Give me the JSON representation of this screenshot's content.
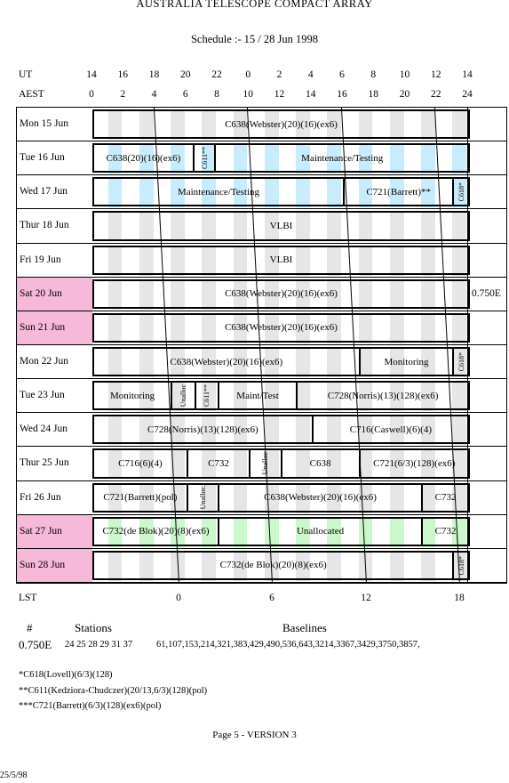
{
  "header": {
    "title": "AUSTRALIA TELESCOPE COMPACT ARRAY",
    "subtitle": "Schedule :- 15 / 28 Jun 1998"
  },
  "axes": {
    "ut_label": "UT",
    "aest_label": "AEST",
    "lst_label": "LST",
    "ut_ticks": [
      "14",
      "16",
      "18",
      "20",
      "22",
      "0",
      "2",
      "4",
      "6",
      "8",
      "10",
      "12",
      "14"
    ],
    "aest_ticks": [
      "0",
      "2",
      "4",
      "6",
      "8",
      "10",
      "12",
      "14",
      "16",
      "18",
      "20",
      "22",
      "24"
    ],
    "lst_ticks": [
      "0",
      "6",
      "12",
      "18"
    ]
  },
  "config_side_label": "0.750E",
  "days": [
    {
      "label": "Mon  15  Jun",
      "weekend": false,
      "blocks": [
        {
          "s": 0,
          "e": 24,
          "t": "C638(Webster)(20)(16)(ex6)"
        }
      ]
    },
    {
      "label": "Tue   16  Jun",
      "weekend": false,
      "blocks": [
        {
          "s": 0,
          "e": 6.4,
          "t": "C638(20)(16)(ex6)"
        },
        {
          "s": 6.4,
          "e": 7.8,
          "t": "C611**",
          "v": true
        },
        {
          "s": 7.8,
          "e": 24,
          "t": "Maintenance/Testing"
        }
      ],
      "stripes": "blue"
    },
    {
      "label": "Wed  17  Jun",
      "weekend": false,
      "blocks": [
        {
          "s": 0,
          "e": 16,
          "t": "Maintenance/Testing"
        },
        {
          "s": 16,
          "e": 23,
          "t": "C721(Barrett)**"
        },
        {
          "s": 23,
          "e": 24,
          "t": "C618*",
          "v": true
        }
      ],
      "stripes": "blue"
    },
    {
      "label": "Thur 18  Jun",
      "weekend": false,
      "blocks": [
        {
          "s": 0,
          "e": 24,
          "t": "VLBI"
        }
      ]
    },
    {
      "label": "Fri   19  Jun",
      "weekend": false,
      "blocks": [
        {
          "s": 0,
          "e": 24,
          "t": "VLBI"
        }
      ]
    },
    {
      "label": "Sat   20  Jun",
      "weekend": true,
      "blocks": [
        {
          "s": 0,
          "e": 24,
          "t": "C638(Webster)(20)(16)(ex6)"
        }
      ]
    },
    {
      "label": "Sun   21  Jun",
      "weekend": true,
      "blocks": [
        {
          "s": 0,
          "e": 24,
          "t": "C638(Webster)(20)(16)(ex6)"
        }
      ]
    },
    {
      "label": "Mon  22  Jun",
      "weekend": false,
      "blocks": [
        {
          "s": 0,
          "e": 17,
          "t": "C638(Webster)(20)(16)(ex6)"
        },
        {
          "s": 17,
          "e": 23,
          "t": "Monitoring"
        },
        {
          "s": 23,
          "e": 24,
          "t": "C618*",
          "v": true
        }
      ]
    },
    {
      "label": "Tue   23  Jun",
      "weekend": false,
      "blocks": [
        {
          "s": 0,
          "e": 5,
          "t": "Monitoring"
        },
        {
          "s": 5,
          "e": 6.5,
          "t": "Unalloc",
          "v": true
        },
        {
          "s": 6.5,
          "e": 8,
          "t": "C611**",
          "v": true
        },
        {
          "s": 8,
          "e": 13,
          "t": "Maint/Test"
        },
        {
          "s": 13,
          "e": 24,
          "t": "C728(Norris)(13)(128)(ex6)"
        }
      ]
    },
    {
      "label": "Wed  24  Jun",
      "weekend": false,
      "blocks": [
        {
          "s": 0,
          "e": 14,
          "t": "C728(Norris)(13)(128)(ex6)"
        },
        {
          "s": 14,
          "e": 24,
          "t": "C716(Caswell)(6)(4)"
        }
      ]
    },
    {
      "label": "Thur 25  Jun",
      "weekend": false,
      "blocks": [
        {
          "s": 0,
          "e": 6,
          "t": "C716(6)(4)"
        },
        {
          "s": 6,
          "e": 10,
          "t": "C732"
        },
        {
          "s": 10,
          "e": 12,
          "t": "Unalloc",
          "v": true,
          "g": true
        },
        {
          "s": 12,
          "e": 17,
          "t": "C638"
        },
        {
          "s": 17,
          "e": 24,
          "t": "C721(6/3)(128)(ex6)"
        }
      ]
    },
    {
      "label": "Fri   26  Jun",
      "weekend": false,
      "blocks": [
        {
          "s": 0,
          "e": 6,
          "t": "C721(Barrett)(pol)"
        },
        {
          "s": 6,
          "e": 8,
          "t": "Unalloc.",
          "v": true,
          "g": true
        },
        {
          "s": 8,
          "e": 21,
          "t": "C638(Webster)(20)(16)(ex6)"
        },
        {
          "s": 21,
          "e": 24,
          "t": "C732"
        }
      ]
    },
    {
      "label": "Sat   27  Jun",
      "weekend": true,
      "blocks": [
        {
          "s": 0,
          "e": 8,
          "t": "C732(de Blok)(20)(8)(ex6)"
        },
        {
          "s": 8,
          "e": 21,
          "t": "Unallocated",
          "g": true
        },
        {
          "s": 21,
          "e": 24,
          "t": "C732"
        }
      ],
      "stripes": "green"
    },
    {
      "label": "Sun   28  Jun",
      "weekend": true,
      "blocks": [
        {
          "s": 0,
          "e": 23,
          "t": "C732(de Blok)(20)(8)(ex6)"
        },
        {
          "s": 23,
          "e": 24,
          "t": "C618*",
          "v": true
        }
      ]
    }
  ],
  "footer": {
    "hash": "#",
    "stations_label": "Stations",
    "baselines_label": "Baselines",
    "config": "0.750E",
    "stations": "24 25 28 29 31 37",
    "baselines": "61,107,153,214,321,383,429,490,536,643,3214,3367,3429,3750,3857,",
    "notes": [
      "*C618(Lovell)(6/3)(128)",
      "**C611(Kedziora-Chudczer)(20/13,6/3)(128)(pol)",
      "***C721(Barrett)(6/3)(128)(ex6)(pol)"
    ],
    "page": "Page 5 - VERSION 3",
    "date": "25/5/98"
  },
  "colors": {
    "weekend": "#f7b9d9",
    "grey_stripe": "#e6e6e6",
    "blue_stripe": "#c8ecfb",
    "green_fill": "#ccf6cc"
  }
}
